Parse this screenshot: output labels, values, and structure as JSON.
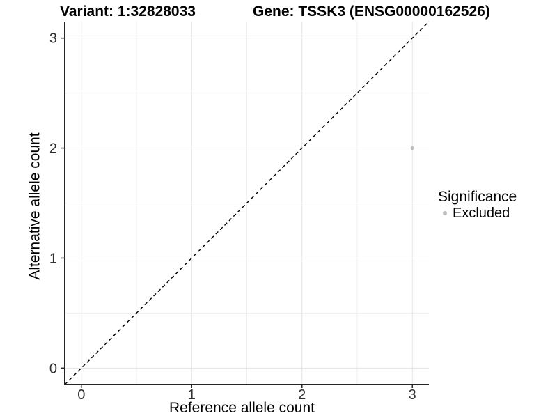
{
  "header": {
    "title_left": "Variant: 1:32828033",
    "title_right": "Gene: TSSK3 (ENSG00000162526)"
  },
  "chart_data": {
    "type": "scatter",
    "title_left": "Variant: 1:32828033",
    "title_right": "Gene: TSSK3 (ENSG00000162526)",
    "xlabel": "Reference allele count",
    "ylabel": "Alternative allele count",
    "xlim": [
      -0.15,
      3.15
    ],
    "ylim": [
      -0.15,
      3.15
    ],
    "xticks": [
      "0",
      "1",
      "2",
      "3"
    ],
    "yticks": [
      "0",
      "1",
      "2",
      "3"
    ],
    "grid": true,
    "minor_gridlines": true,
    "series": [
      {
        "name": "Excluded",
        "color": "#bdbdbd",
        "points": [
          {
            "x": 3,
            "y": 2
          }
        ]
      }
    ],
    "reference_line": {
      "slope": 1,
      "intercept": 0,
      "style": "dashed",
      "color": "#000000"
    },
    "legend": {
      "title": "Significance",
      "position": "right",
      "entries": [
        {
          "label": "Excluded",
          "color": "#bdbdbd"
        }
      ]
    },
    "colors": {
      "background": "#ffffff",
      "grid_major": "#e4e4e4",
      "grid_minor": "#efefef",
      "axis_line": "#262626",
      "tick_text": "#303030",
      "point": "#bdbdbd"
    }
  }
}
